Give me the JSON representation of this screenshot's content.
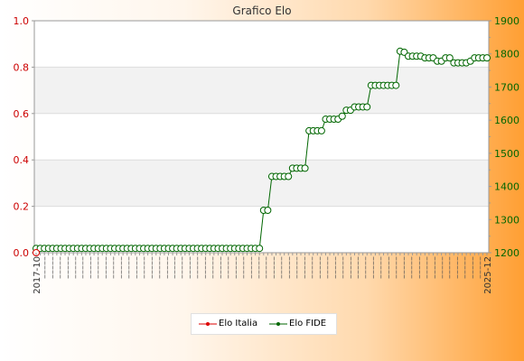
{
  "colors": {
    "italia": "#dd0000",
    "fide": "#006600",
    "left_axis": "#cc0000",
    "right_axis": "#006600"
  },
  "chart_data": {
    "type": "line",
    "title": "Grafico Elo",
    "grid": true,
    "legend_position": "bottom",
    "y_left": {
      "range": [
        0,
        1.0
      ],
      "ticks": [
        "0.0",
        "0.2",
        "0.4",
        "0.6",
        "0.8",
        "1.0"
      ]
    },
    "y_right": {
      "range": [
        1200,
        1900
      ],
      "ticks": [
        "1200",
        "1300",
        "1400",
        "1500",
        "1600",
        "1700",
        "1800",
        "1900"
      ]
    },
    "x_start_label": "2017-10",
    "x_end_label": "2025-12",
    "series": [
      {
        "name": "Elo Italia",
        "axis": "left",
        "values": [
          0
        ]
      },
      {
        "name": "Elo FIDE",
        "axis": "right",
        "values": [
          1213,
          1213,
          1213,
          1213,
          1213,
          1213,
          1213,
          1213,
          1213,
          1213,
          1213,
          1213,
          1213,
          1213,
          1213,
          1213,
          1213,
          1213,
          1213,
          1213,
          1213,
          1213,
          1213,
          1213,
          1213,
          1213,
          1213,
          1213,
          1213,
          1213,
          1213,
          1213,
          1213,
          1213,
          1213,
          1213,
          1213,
          1213,
          1213,
          1213,
          1213,
          1213,
          1213,
          1213,
          1213,
          1213,
          1213,
          1213,
          1213,
          1213,
          1213,
          1213,
          1213,
          1213,
          1213,
          1328,
          1328,
          1430,
          1430,
          1430,
          1430,
          1430,
          1455,
          1455,
          1455,
          1455,
          1568,
          1568,
          1568,
          1568,
          1603,
          1603,
          1603,
          1603,
          1612,
          1630,
          1630,
          1640,
          1640,
          1640,
          1640,
          1705,
          1705,
          1705,
          1705,
          1705,
          1705,
          1705,
          1808,
          1805,
          1793,
          1793,
          1793,
          1793,
          1788,
          1788,
          1788,
          1778,
          1778,
          1788,
          1788,
          1773,
          1773,
          1773,
          1773,
          1778,
          1788,
          1788,
          1788,
          1788
        ]
      }
    ]
  }
}
